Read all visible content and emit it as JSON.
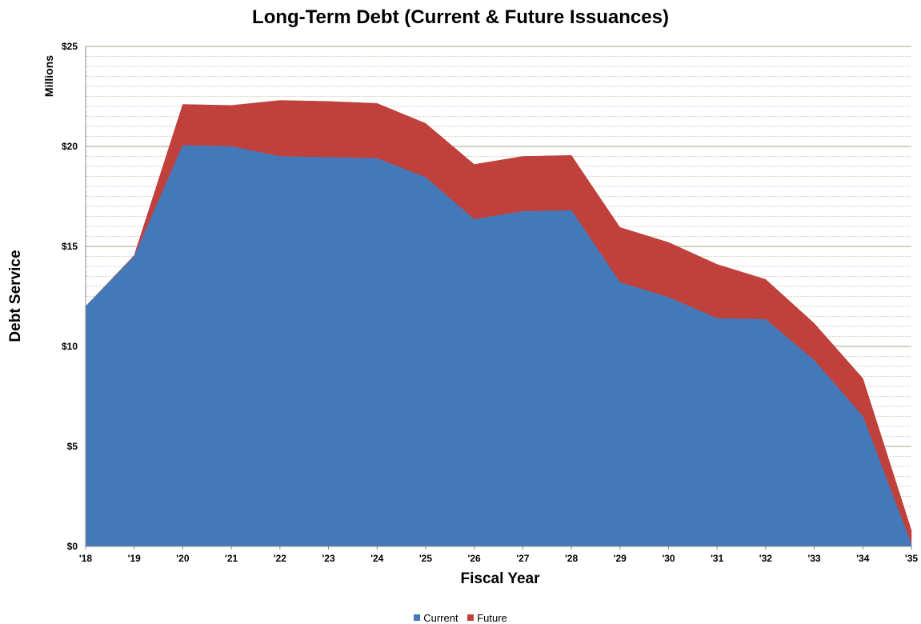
{
  "chart_data": {
    "type": "area",
    "stacked": true,
    "title": "Long-Term Debt (Current & Future Issuances)",
    "xlabel": "Fiscal Year",
    "ylabel": "Debt Service",
    "y_units": "Millions",
    "categories": [
      "'18",
      "'19",
      "'20",
      "'21",
      "'22",
      "'23",
      "'24",
      "'25",
      "'26",
      "'27",
      "'28",
      "'29",
      "'30",
      "'31",
      "'32",
      "'33",
      "'34",
      "'35"
    ],
    "ylim": [
      0,
      25
    ],
    "yticks": [
      "$0",
      "$5",
      "$10",
      "$15",
      "$20",
      "$25"
    ],
    "grid": true,
    "legend": "bottom",
    "series": [
      {
        "name": "Current",
        "color": "#4479b9",
        "values": [
          12.0,
          14.5,
          20.05,
          20.0,
          19.5,
          19.45,
          19.4,
          18.45,
          16.35,
          16.75,
          16.8,
          13.2,
          12.45,
          11.4,
          11.35,
          9.3,
          6.5,
          0.1
        ]
      },
      {
        "name": "Future",
        "color": "#c0403c",
        "values": [
          0.0,
          0.05,
          2.05,
          2.05,
          2.8,
          2.8,
          2.75,
          2.7,
          2.75,
          2.75,
          2.75,
          2.75,
          2.75,
          2.7,
          2.0,
          1.85,
          1.9,
          0.7
        ]
      }
    ]
  }
}
